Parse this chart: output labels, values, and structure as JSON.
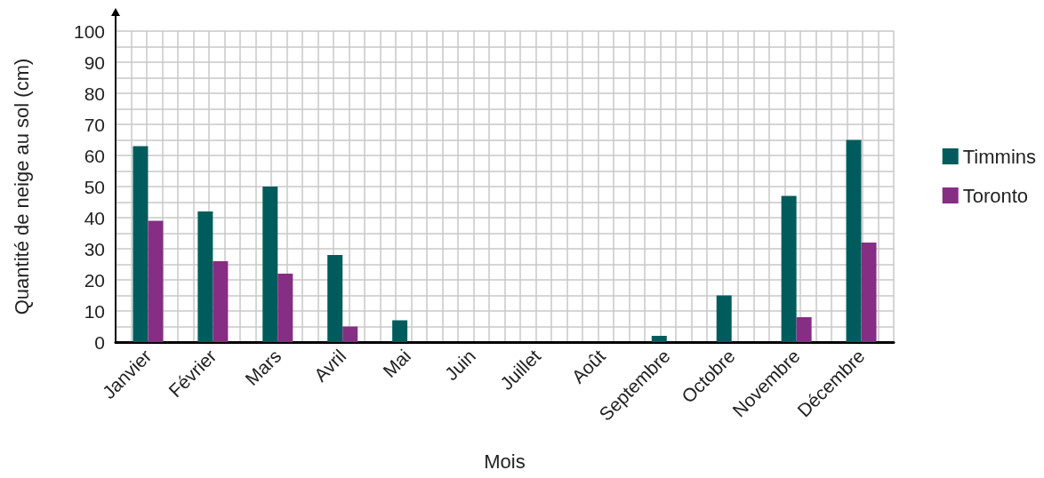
{
  "chart_data": {
    "type": "bar",
    "xlabel": "Mois",
    "ylabel": "Quantité de neige au sol (cm)",
    "categories": [
      "Janvier",
      "Février",
      "Mars",
      "Avril",
      "Mai",
      "Juin",
      "Juillet",
      "Août",
      "Septembre",
      "Octobre",
      "Novembre",
      "Décembre"
    ],
    "series": [
      {
        "name": "Timmins",
        "color": "#005c5c",
        "values": [
          63,
          42,
          50,
          28,
          7,
          0,
          0,
          0,
          2,
          15,
          47,
          65
        ]
      },
      {
        "name": "Toronto",
        "color": "#862d84",
        "values": [
          39,
          26,
          22,
          5,
          0,
          0,
          0,
          0,
          0,
          0,
          8,
          32
        ]
      }
    ],
    "ylim": [
      0,
      100
    ],
    "yticks": [
      0,
      10,
      20,
      30,
      40,
      50,
      60,
      70,
      80,
      90,
      100
    ],
    "grid": true,
    "legend": "right"
  }
}
